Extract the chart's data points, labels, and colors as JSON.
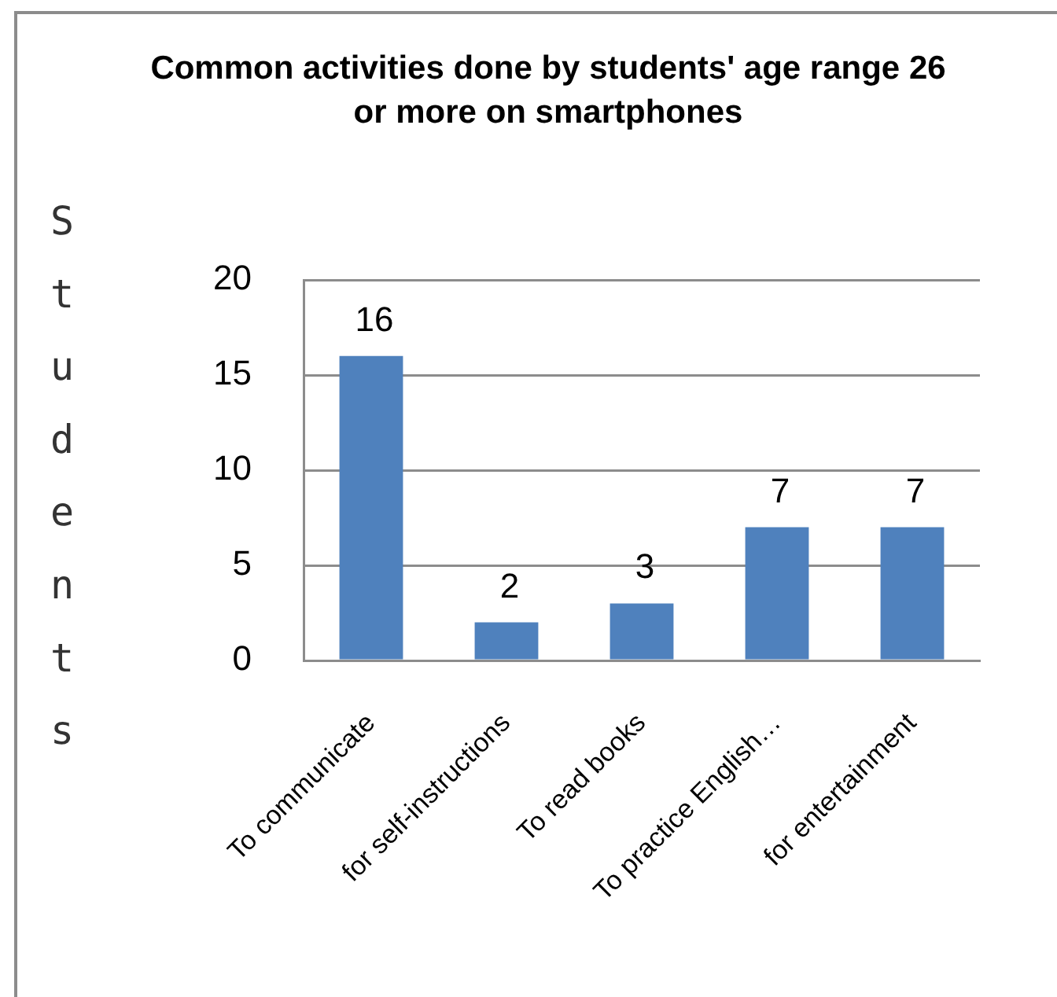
{
  "chart_data": {
    "type": "bar",
    "title": "Common activities done by students' age range 26 or more on smartphones",
    "ylabel": "Students",
    "categories": [
      "To communicate",
      "for self-instructions",
      "To read books",
      "To practice English…",
      "for entertainment"
    ],
    "values": [
      16,
      2,
      3,
      7,
      7
    ],
    "color": "#4f81bd",
    "ylim": [
      0,
      20
    ],
    "yticks": [
      0,
      5,
      10,
      15,
      20
    ],
    "grid": "y",
    "data_labels": true
  }
}
